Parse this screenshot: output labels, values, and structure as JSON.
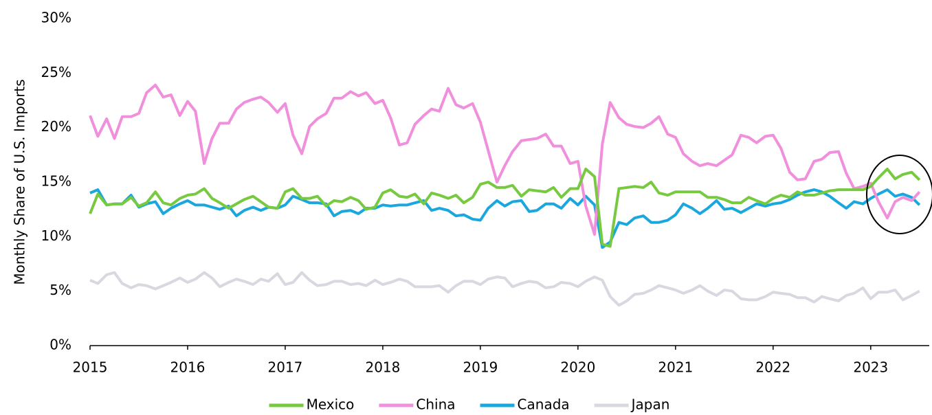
{
  "chart_data": {
    "type": "line",
    "y_label": "Monthly Share of U.S. Imports",
    "x": [
      2015,
      2015.08,
      2015.17,
      2015.25,
      2015.33,
      2015.42,
      2015.5,
      2015.58,
      2015.67,
      2015.75,
      2015.83,
      2015.92,
      2016,
      2016.08,
      2016.17,
      2016.25,
      2016.33,
      2016.42,
      2016.5,
      2016.58,
      2016.67,
      2016.75,
      2016.83,
      2016.92,
      2017,
      2017.08,
      2017.17,
      2017.25,
      2017.33,
      2017.42,
      2017.5,
      2017.58,
      2017.67,
      2017.75,
      2017.83,
      2017.92,
      2018,
      2018.08,
      2018.17,
      2018.25,
      2018.33,
      2018.42,
      2018.5,
      2018.58,
      2018.67,
      2018.75,
      2018.83,
      2018.92,
      2019,
      2019.08,
      2019.17,
      2019.25,
      2019.33,
      2019.42,
      2019.5,
      2019.58,
      2019.67,
      2019.75,
      2019.83,
      2019.92,
      2020,
      2020.08,
      2020.17,
      2020.25,
      2020.33,
      2020.42,
      2020.5,
      2020.58,
      2020.67,
      2020.75,
      2020.83,
      2020.92,
      2021,
      2021.08,
      2021.17,
      2021.25,
      2021.33,
      2021.42,
      2021.5,
      2021.58,
      2021.67,
      2021.75,
      2021.83,
      2021.92,
      2022,
      2022.08,
      2022.17,
      2022.25,
      2022.33,
      2022.42,
      2022.5,
      2022.58,
      2022.67,
      2022.75,
      2022.83,
      2022.92,
      2023,
      2023.08,
      2023.17,
      2023.25,
      2023.33,
      2023.42,
      2023.5
    ],
    "series": [
      {
        "name": "Mexico",
        "color": "#77c93f",
        "values": [
          12.1,
          13.9,
          12.9,
          13.0,
          13.0,
          13.6,
          12.8,
          13.1,
          14.1,
          13.1,
          12.9,
          13.5,
          13.8,
          13.9,
          14.4,
          13.5,
          13.1,
          12.6,
          13.0,
          13.4,
          13.7,
          13.2,
          12.7,
          12.6,
          14.1,
          14.4,
          13.5,
          13.5,
          13.7,
          12.8,
          13.3,
          13.2,
          13.6,
          13.3,
          12.5,
          12.7,
          14.0,
          14.3,
          13.7,
          13.6,
          13.9,
          13.0,
          14.0,
          13.8,
          13.5,
          13.8,
          13.1,
          13.6,
          14.8,
          15.0,
          14.5,
          14.5,
          14.7,
          13.7,
          14.3,
          14.2,
          14.1,
          14.5,
          13.6,
          14.4,
          14.4,
          16.2,
          15.5,
          9.3,
          9.1,
          14.4,
          14.5,
          14.6,
          14.5,
          15.0,
          14.0,
          13.8,
          14.1,
          14.1,
          14.1,
          14.1,
          13.6,
          13.6,
          13.4,
          13.1,
          13.1,
          13.6,
          13.3,
          13.0,
          13.5,
          13.8,
          13.6,
          14.1,
          13.8,
          13.8,
          14.0,
          14.2,
          14.3,
          14.3,
          14.3,
          14.3,
          14.6,
          15.4,
          16.2,
          15.3,
          15.7,
          15.9,
          15.2
        ]
      },
      {
        "name": "China",
        "color": "#f08fdc",
        "values": [
          21.1,
          19.2,
          20.8,
          19.0,
          21.0,
          21.0,
          21.3,
          23.2,
          23.9,
          22.8,
          23.0,
          21.1,
          22.4,
          21.5,
          16.7,
          19.0,
          20.4,
          20.4,
          21.7,
          22.3,
          22.6,
          22.8,
          22.3,
          21.4,
          22.2,
          19.3,
          17.6,
          20.1,
          20.8,
          21.3,
          22.7,
          22.7,
          23.3,
          22.9,
          23.2,
          22.2,
          22.5,
          20.9,
          18.4,
          18.6,
          20.3,
          21.1,
          21.7,
          21.5,
          23.6,
          22.1,
          21.8,
          22.2,
          20.5,
          17.9,
          15.0,
          16.5,
          17.8,
          18.8,
          18.9,
          19.0,
          19.4,
          18.3,
          18.3,
          16.7,
          16.9,
          12.8,
          10.2,
          18.5,
          22.3,
          20.9,
          20.3,
          20.1,
          20.0,
          20.4,
          21.0,
          19.4,
          19.1,
          17.6,
          16.9,
          16.5,
          16.7,
          16.5,
          17.0,
          17.5,
          19.3,
          19.1,
          18.6,
          19.2,
          19.3,
          18.1,
          15.9,
          15.2,
          15.3,
          16.9,
          17.1,
          17.7,
          17.8,
          15.8,
          14.4,
          14.6,
          14.9,
          13.2,
          11.7,
          13.2,
          13.6,
          13.3,
          14.1
        ]
      },
      {
        "name": "Canada",
        "color": "#19a7dd",
        "values": [
          14.0,
          14.3,
          12.9,
          13.0,
          13.0,
          13.8,
          12.7,
          13.0,
          13.2,
          12.1,
          12.6,
          13.0,
          13.3,
          12.9,
          12.9,
          12.7,
          12.5,
          12.8,
          11.9,
          12.4,
          12.7,
          12.4,
          12.7,
          12.6,
          12.9,
          13.7,
          13.4,
          13.1,
          13.1,
          13.0,
          11.9,
          12.3,
          12.4,
          12.1,
          12.6,
          12.6,
          12.9,
          12.8,
          12.9,
          12.9,
          13.1,
          13.3,
          12.4,
          12.6,
          12.4,
          11.9,
          12.0,
          11.6,
          11.5,
          12.6,
          13.3,
          12.8,
          13.2,
          13.3,
          12.3,
          12.4,
          13.0,
          13.0,
          12.6,
          13.5,
          12.9,
          13.7,
          12.9,
          9.0,
          9.5,
          11.3,
          11.1,
          11.7,
          11.9,
          11.3,
          11.3,
          11.5,
          12.0,
          13.0,
          12.6,
          12.1,
          12.6,
          13.3,
          12.5,
          12.6,
          12.2,
          12.6,
          13.0,
          12.8,
          13.0,
          13.1,
          13.4,
          13.8,
          14.1,
          14.3,
          14.1,
          13.7,
          13.1,
          12.6,
          13.2,
          13.0,
          13.5,
          13.9,
          14.3,
          13.7,
          13.9,
          13.6,
          12.9
        ]
      },
      {
        "name": "Japan",
        "color": "#d8d8e0",
        "values": [
          6.0,
          5.7,
          6.5,
          6.7,
          5.7,
          5.3,
          5.6,
          5.5,
          5.2,
          5.5,
          5.8,
          6.2,
          5.8,
          6.1,
          6.7,
          6.2,
          5.4,
          5.8,
          6.1,
          5.9,
          5.6,
          6.1,
          5.9,
          6.6,
          5.6,
          5.8,
          6.7,
          6.0,
          5.5,
          5.6,
          5.9,
          5.9,
          5.6,
          5.7,
          5.5,
          6.0,
          5.6,
          5.8,
          6.1,
          5.9,
          5.4,
          5.4,
          5.4,
          5.5,
          4.9,
          5.5,
          5.9,
          5.9,
          5.6,
          6.1,
          6.3,
          6.2,
          5.4,
          5.7,
          5.9,
          5.8,
          5.3,
          5.4,
          5.8,
          5.7,
          5.4,
          5.9,
          6.3,
          6.0,
          4.5,
          3.7,
          4.1,
          4.7,
          4.8,
          5.1,
          5.5,
          5.3,
          5.1,
          4.8,
          5.1,
          5.5,
          5.0,
          4.6,
          5.1,
          5.0,
          4.3,
          4.2,
          4.2,
          4.5,
          4.9,
          4.8,
          4.7,
          4.4,
          4.4,
          4.0,
          4.5,
          4.3,
          4.1,
          4.6,
          4.8,
          5.3,
          4.3,
          4.9,
          4.9,
          5.1,
          4.2,
          4.6,
          5.0
        ]
      }
    ],
    "xlim": [
      2015,
      2023.6
    ],
    "xticks": [
      2015,
      2016,
      2017,
      2018,
      2019,
      2020,
      2021,
      2022,
      2023
    ],
    "ylim": [
      0,
      30
    ],
    "yticks": [
      {
        "value": 0,
        "label": "0%"
      },
      {
        "value": 5,
        "label": "5%"
      },
      {
        "value": 10,
        "label": "10%"
      },
      {
        "value": 15,
        "label": "15%"
      },
      {
        "value": 20,
        "label": "20%"
      },
      {
        "value": 25,
        "label": "25%"
      },
      {
        "value": 30,
        "label": "30%"
      }
    ],
    "grid": false,
    "legend": "bottom"
  }
}
